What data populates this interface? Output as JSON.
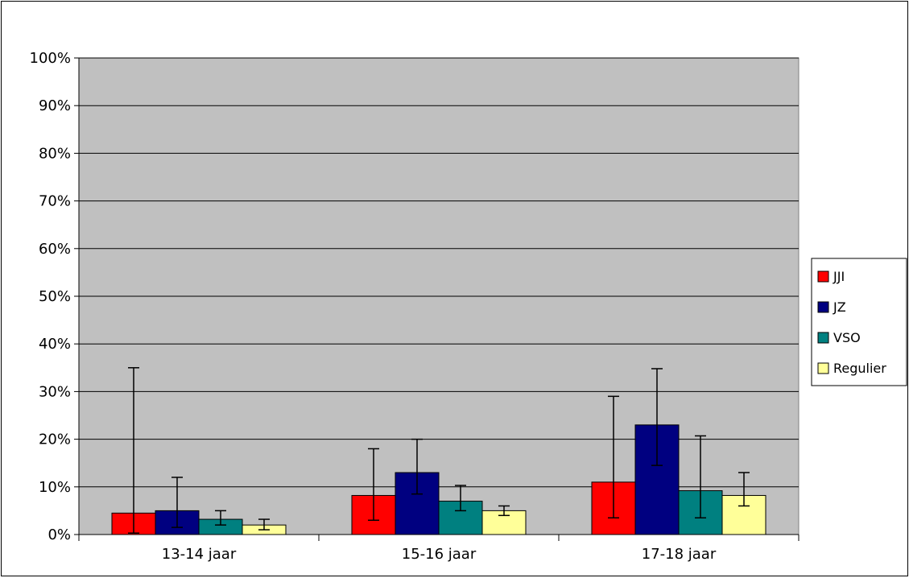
{
  "chart_data": {
    "type": "bar",
    "categories": [
      "13-14 jaar",
      "15-16 jaar",
      "17-18 jaar"
    ],
    "series": [
      {
        "name": "JJI",
        "color": "#ff0000",
        "values": [
          4.5,
          8.2,
          11.0
        ],
        "error_low": [
          0.3,
          3.0,
          3.5
        ],
        "error_high": [
          35.0,
          18.0,
          29.0
        ]
      },
      {
        "name": "JZ",
        "color": "#000080",
        "values": [
          5.0,
          13.0,
          23.0
        ],
        "error_low": [
          1.5,
          8.5,
          14.5
        ],
        "error_high": [
          12.0,
          20.0,
          34.8
        ]
      },
      {
        "name": "VSO",
        "color": "#008080",
        "values": [
          3.2,
          7.0,
          9.2
        ],
        "error_low": [
          2.0,
          5.0,
          3.5
        ],
        "error_high": [
          5.0,
          10.3,
          20.7
        ]
      },
      {
        "name": "Regulier",
        "color": "#ffff99",
        "values": [
          2.0,
          5.0,
          8.2
        ],
        "error_low": [
          1.0,
          4.0,
          6.0
        ],
        "error_high": [
          3.2,
          6.0,
          13.0
        ]
      }
    ],
    "y_ticks": [
      "0%",
      "10%",
      "20%",
      "30%",
      "40%",
      "50%",
      "60%",
      "70%",
      "80%",
      "90%",
      "100%"
    ],
    "ylim": [
      0,
      100
    ],
    "plot_background": "#c0c0c0",
    "grid": true,
    "legend_position": "right"
  }
}
